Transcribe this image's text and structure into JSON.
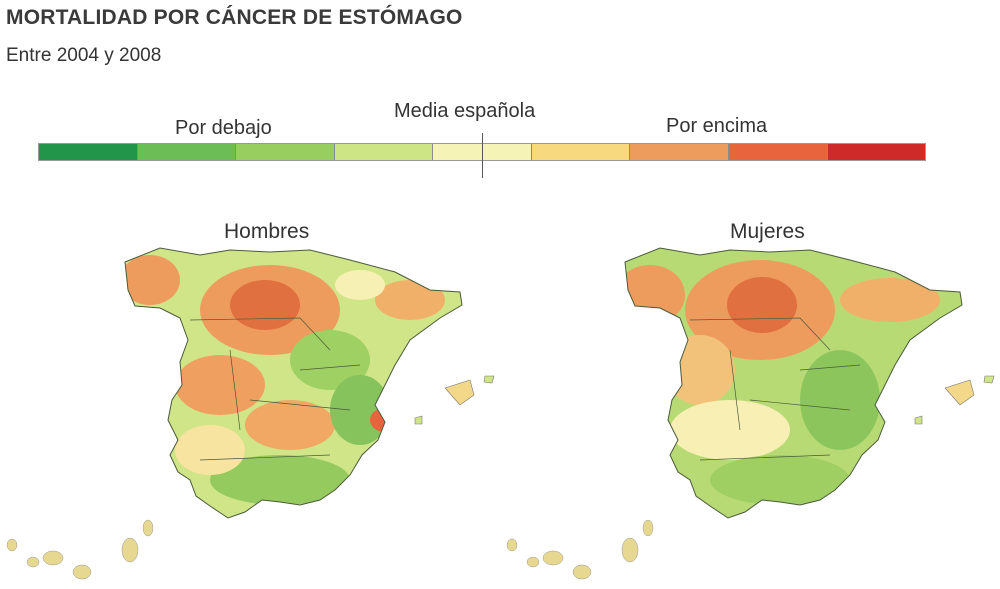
{
  "header": {
    "title": "MORTALIDAD POR CÁNCER DE ESTÓMAGO",
    "subtitle": "Entre 2004 y 2008"
  },
  "legend": {
    "below_label": "Por debajo",
    "mean_label": "Media española",
    "above_label": "Por encima",
    "colors": [
      "#22954a",
      "#6cbd55",
      "#98cd60",
      "#cde585",
      "#f5f3b6",
      "#f7d97f",
      "#ee9c5e",
      "#e8643c",
      "#cf2a2a"
    ]
  },
  "maps": [
    {
      "title": "Hombres"
    },
    {
      "title": "Mujeres"
    }
  ]
}
